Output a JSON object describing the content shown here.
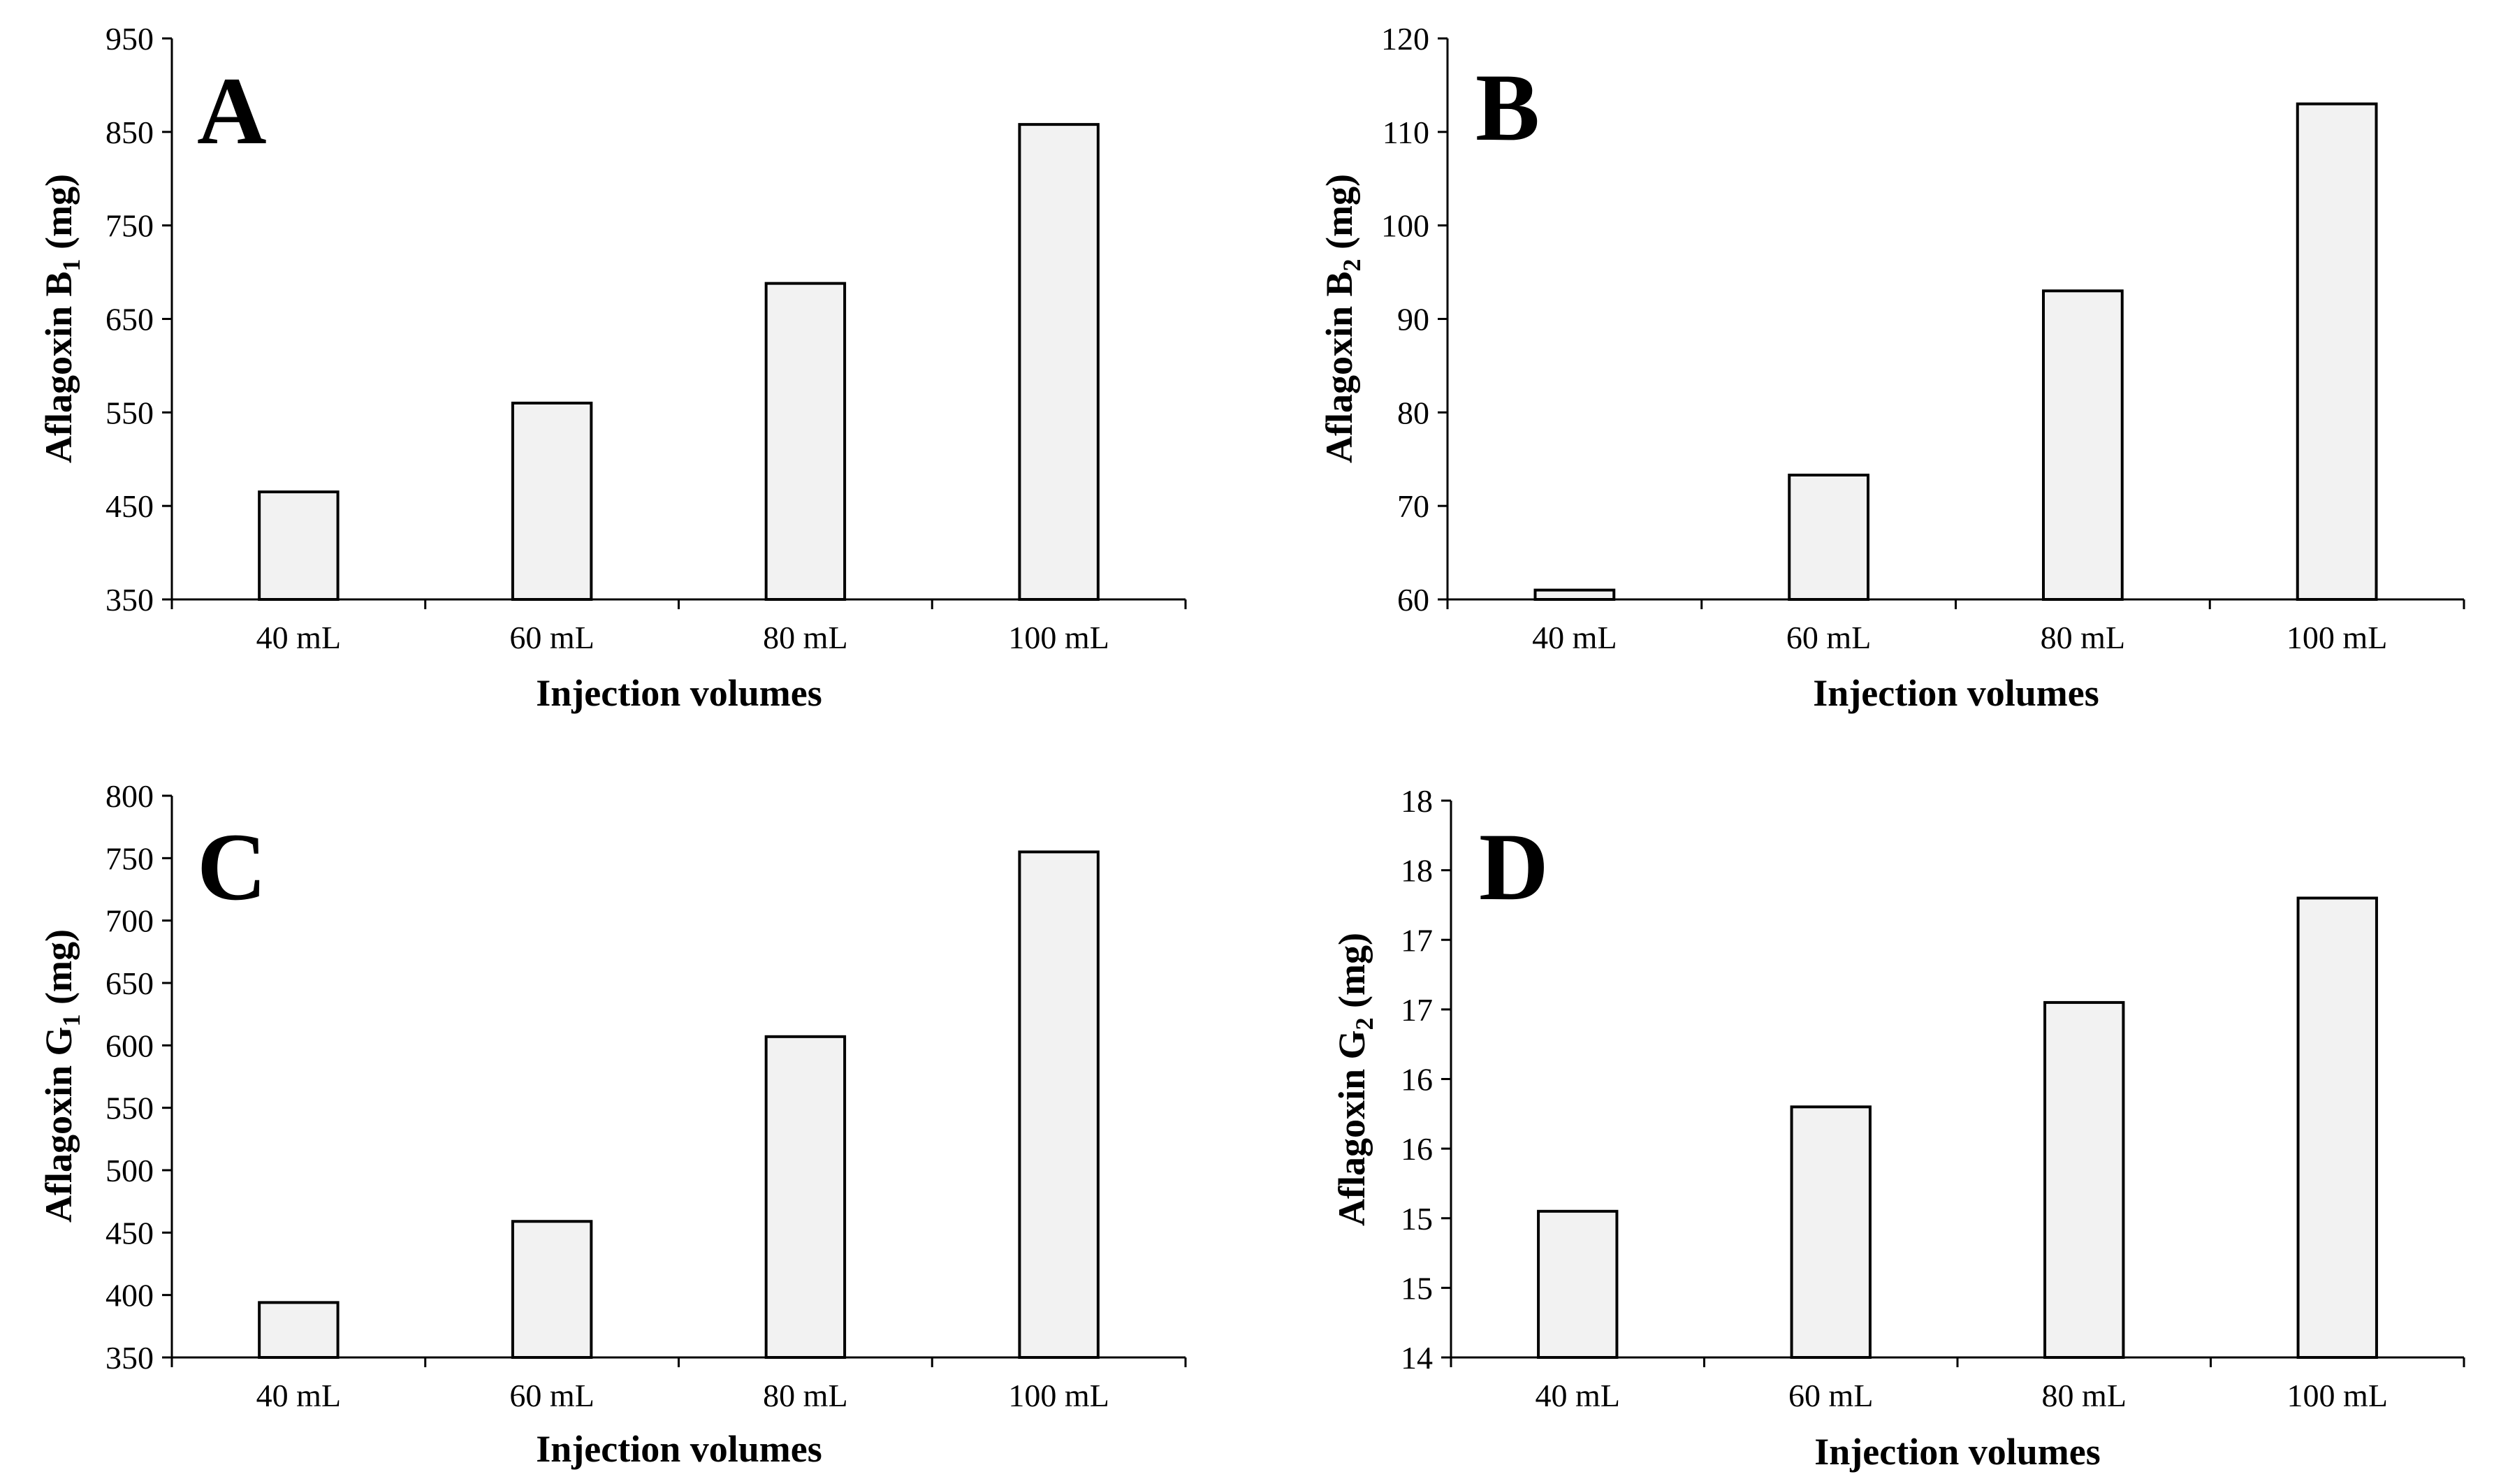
{
  "colors": {
    "bar_fill": "#f2f2f2",
    "bar_stroke": "#000000",
    "axis": "#000000"
  },
  "chart_data": [
    {
      "type": "bar",
      "panel_label": "A",
      "categories": [
        "40 mL",
        "60 mL",
        "80 mL",
        "100 mL"
      ],
      "values": [
        465,
        560,
        688,
        858
      ],
      "xlabel": "Injection volumes",
      "ylabel": "Aflagoxin B",
      "ylabel_subscript": "1",
      "ylabel_unit": " (mg)",
      "ylim": [
        350,
        950
      ],
      "yticks": [
        350,
        450,
        550,
        650,
        750,
        850,
        950
      ],
      "ytick_labels": [
        "350",
        "450",
        "550",
        "650",
        "750",
        "850",
        "950"
      ]
    },
    {
      "type": "bar",
      "panel_label": "B",
      "categories": [
        "40 mL",
        "60 mL",
        "80 mL",
        "100 mL"
      ],
      "values": [
        61,
        73.3,
        93,
        113
      ],
      "xlabel": "Injection volumes",
      "ylabel": "Aflagoxin B",
      "ylabel_subscript": "2",
      "ylabel_unit": " (mg)",
      "ylim": [
        60,
        120
      ],
      "yticks": [
        60,
        70,
        80,
        90,
        100,
        110,
        120
      ],
      "ytick_labels": [
        "60",
        "70",
        "80",
        "90",
        "100",
        "110",
        "120"
      ]
    },
    {
      "type": "bar",
      "panel_label": "C",
      "categories": [
        "40 mL",
        "60 mL",
        "80 mL",
        "100 mL"
      ],
      "values": [
        394,
        459,
        607,
        755
      ],
      "xlabel": "Injection volumes",
      "ylabel": "Aflagoxin G",
      "ylabel_subscript": "1",
      "ylabel_unit": " (mg)",
      "ylim": [
        350,
        800
      ],
      "yticks": [
        350,
        400,
        450,
        500,
        550,
        600,
        650,
        700,
        750,
        800
      ],
      "ytick_labels": [
        "350",
        "400",
        "450",
        "500",
        "550",
        "600",
        "650",
        "700",
        "750",
        "800"
      ]
    },
    {
      "type": "bar",
      "panel_label": "D",
      "categories": [
        "40 mL",
        "60 mL",
        "80 mL",
        "100 mL"
      ],
      "values": [
        15.05,
        15.8,
        16.55,
        17.3
      ],
      "xlabel": "Injection volumes",
      "ylabel": "Aflagoxin G",
      "ylabel_subscript": "2",
      "ylabel_unit": " (mg)",
      "ylim": [
        14,
        18
      ],
      "yticks": [
        14,
        14.5,
        15,
        15.5,
        16,
        16.5,
        17,
        17.5,
        18
      ],
      "ytick_labels": [
        "14",
        "15",
        "15",
        "16",
        "16",
        "17",
        "17",
        "18",
        "18"
      ]
    }
  ]
}
